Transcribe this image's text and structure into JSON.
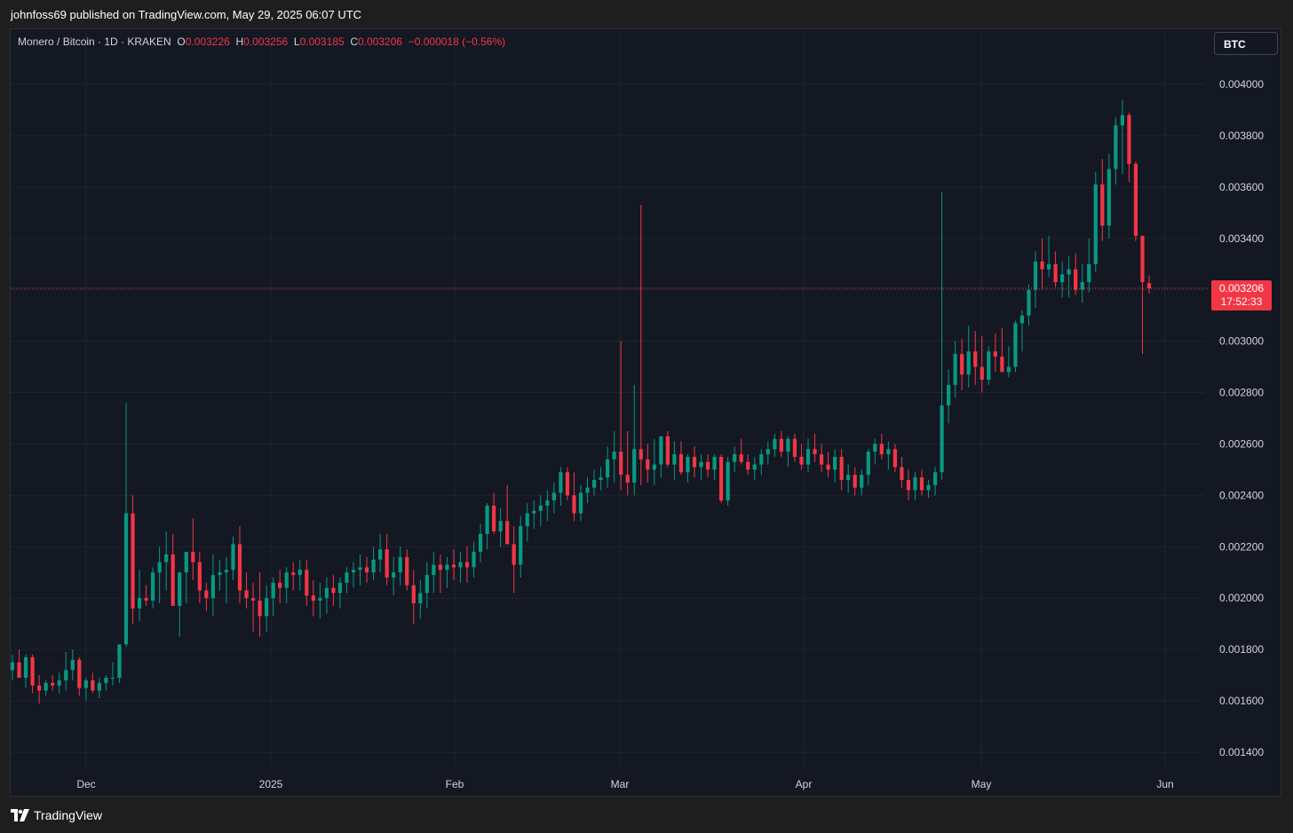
{
  "header": {
    "published_text": "johnfoss69 published on TradingView.com, May 29, 2025 06:07 UTC"
  },
  "legend": {
    "symbol": "Monero / Bitcoin · 1D · KRAKEN",
    "open_label": "O",
    "open_value": "0.003226",
    "high_label": "H",
    "high_value": "0.003256",
    "low_label": "L",
    "low_value": "0.003185",
    "close_label": "C",
    "close_value": "0.003206",
    "change": "−0.000018 (−0.56%)"
  },
  "currency_button": "BTC",
  "last_price": {
    "value": "0.003206",
    "countdown": "17:52:33"
  },
  "footer": {
    "brand": "TradingView"
  },
  "colors": {
    "up": "#089981",
    "down": "#f23645",
    "background": "#141823",
    "grid": "#1f2330"
  },
  "chart_data": {
    "type": "candlestick",
    "title": "Monero / Bitcoin · 1D · KRAKEN",
    "y_ticks": [
      "0.001400",
      "0.001600",
      "0.001800",
      "0.002000",
      "0.002200",
      "0.002400",
      "0.002600",
      "0.002800",
      "0.003000",
      "0.003200",
      "0.003400",
      "0.003600",
      "0.003800",
      "0.004000"
    ],
    "ylim": [
      0.00134,
      0.00415
    ],
    "x_labels": [
      "Dec",
      "2025",
      "Feb",
      "Mar",
      "Apr",
      "May",
      "Jun"
    ],
    "start_date": "2024-11-16",
    "anchors": [
      [
        0.00172,
        0.00178,
        0.00168,
        0.00175
      ],
      [
        0.00175,
        0.0018,
        0.0017,
        0.00169
      ],
      [
        0.00169,
        0.00178,
        0.00165,
        0.00177
      ],
      [
        0.00177,
        0.00178,
        0.00163,
        0.00166
      ],
      [
        0.00166,
        0.0017,
        0.00159,
        0.00164
      ],
      [
        0.00164,
        0.00168,
        0.00162,
        0.00167
      ],
      [
        0.00167,
        0.0017,
        0.00164,
        0.00166
      ],
      [
        0.00166,
        0.00171,
        0.00163,
        0.00168
      ],
      [
        0.00168,
        0.00179,
        0.00164,
        0.00172
      ],
      [
        0.00172,
        0.0018,
        0.00168,
        0.00176
      ],
      [
        0.00176,
        0.00177,
        0.00162,
        0.00165
      ],
      [
        0.00165,
        0.00169,
        0.0016,
        0.00168
      ],
      [
        0.00168,
        0.00171,
        0.00163,
        0.00164
      ],
      [
        0.00164,
        0.00169,
        0.00161,
        0.00167
      ],
      [
        0.00167,
        0.0017,
        0.00164,
        0.00169
      ],
      [
        0.00169,
        0.00175,
        0.00166,
        0.00169
      ],
      [
        0.00169,
        0.00178,
        0.00167,
        0.00182
      ],
      [
        0.00182,
        0.00276,
        0.00181,
        0.00233
      ],
      [
        0.00233,
        0.0024,
        0.0019,
        0.00196
      ],
      [
        0.00196,
        0.00211,
        0.00191,
        0.002
      ],
      [
        0.002,
        0.00205,
        0.00197,
        0.00199
      ],
      [
        0.00199,
        0.00212,
        0.00196,
        0.0021
      ],
      [
        0.0021,
        0.0022,
        0.00198,
        0.00214
      ],
      [
        0.00214,
        0.00226,
        0.00203,
        0.00217
      ],
      [
        0.00217,
        0.00225,
        0.00199,
        0.00197
      ],
      [
        0.00197,
        0.00206,
        0.00185,
        0.0021
      ],
      [
        0.0021,
        0.00214,
        0.00198,
        0.00218
      ],
      [
        0.00218,
        0.00231,
        0.00207,
        0.00214
      ],
      [
        0.00214,
        0.00218,
        0.00198,
        0.00203
      ],
      [
        0.00203,
        0.00206,
        0.00195,
        0.002
      ],
      [
        0.002,
        0.00217,
        0.00193,
        0.00209
      ],
      [
        0.00209,
        0.00215,
        0.00203,
        0.0021
      ],
      [
        0.0021,
        0.00216,
        0.00198,
        0.00211
      ],
      [
        0.00211,
        0.00224,
        0.00207,
        0.00221
      ],
      [
        0.00221,
        0.00228,
        0.00198,
        0.00203
      ],
      [
        0.00203,
        0.0021,
        0.00196,
        0.002
      ],
      [
        0.002,
        0.00206,
        0.00187,
        0.00199
      ],
      [
        0.00199,
        0.0021,
        0.00185,
        0.00193
      ],
      [
        0.00193,
        0.00205,
        0.00187,
        0.002
      ],
      [
        0.002,
        0.00208,
        0.00193,
        0.00206
      ],
      [
        0.00206,
        0.00211,
        0.00198,
        0.00204
      ],
      [
        0.00204,
        0.00212,
        0.00198,
        0.0021
      ],
      [
        0.0021,
        0.00214,
        0.00203,
        0.00209
      ],
      [
        0.00209,
        0.00215,
        0.00203,
        0.00211
      ],
      [
        0.00211,
        0.00215,
        0.00197,
        0.00201
      ],
      [
        0.00201,
        0.00207,
        0.00193,
        0.00199
      ],
      [
        0.00199,
        0.00206,
        0.00192,
        0.002
      ],
      [
        0.002,
        0.00208,
        0.00194,
        0.00204
      ],
      [
        0.00204,
        0.00209,
        0.00197,
        0.00202
      ],
      [
        0.00202,
        0.00208,
        0.00196,
        0.00206
      ],
      [
        0.00206,
        0.00212,
        0.00202,
        0.0021
      ],
      [
        0.0021,
        0.00214,
        0.00204,
        0.00211
      ],
      [
        0.00211,
        0.00217,
        0.00205,
        0.00212
      ],
      [
        0.00212,
        0.00216,
        0.00206,
        0.0021
      ],
      [
        0.0021,
        0.0022,
        0.00207,
        0.00215
      ],
      [
        0.00215,
        0.00225,
        0.0021,
        0.00219
      ],
      [
        0.00219,
        0.00225,
        0.00205,
        0.00208
      ],
      [
        0.00208,
        0.00216,
        0.00201,
        0.0021
      ],
      [
        0.0021,
        0.0022,
        0.00205,
        0.00216
      ],
      [
        0.00216,
        0.00219,
        0.00203,
        0.00205
      ],
      [
        0.00205,
        0.00211,
        0.0019,
        0.00198
      ],
      [
        0.00198,
        0.00207,
        0.00192,
        0.00202
      ],
      [
        0.00202,
        0.00214,
        0.00196,
        0.00209
      ],
      [
        0.00209,
        0.00218,
        0.00202,
        0.00213
      ],
      [
        0.00213,
        0.00217,
        0.00202,
        0.00211
      ],
      [
        0.00211,
        0.00216,
        0.00204,
        0.00213
      ],
      [
        0.00213,
        0.00219,
        0.00207,
        0.00212
      ],
      [
        0.00212,
        0.00218,
        0.00206,
        0.00214
      ],
      [
        0.00214,
        0.0022,
        0.00206,
        0.00212
      ],
      [
        0.00212,
        0.00222,
        0.00208,
        0.00218
      ],
      [
        0.00218,
        0.00229,
        0.00214,
        0.00225
      ],
      [
        0.00225,
        0.00237,
        0.00219,
        0.00236
      ],
      [
        0.00236,
        0.00241,
        0.00225,
        0.00226
      ],
      [
        0.00226,
        0.00235,
        0.0022,
        0.0023
      ],
      [
        0.0023,
        0.00244,
        0.00222,
        0.00221
      ],
      [
        0.00221,
        0.00228,
        0.00202,
        0.00213
      ],
      [
        0.00213,
        0.00232,
        0.00208,
        0.00228
      ],
      [
        0.00228,
        0.00237,
        0.00222,
        0.00233
      ],
      [
        0.00233,
        0.00238,
        0.00227,
        0.00234
      ],
      [
        0.00234,
        0.0024,
        0.00228,
        0.00236
      ],
      [
        0.00236,
        0.00242,
        0.0023,
        0.00238
      ],
      [
        0.00238,
        0.00245,
        0.00233,
        0.00241
      ],
      [
        0.00241,
        0.00251,
        0.00236,
        0.00249
      ],
      [
        0.00249,
        0.00251,
        0.00238,
        0.0024
      ],
      [
        0.0024,
        0.00249,
        0.0023,
        0.00233
      ],
      [
        0.00233,
        0.00244,
        0.0023,
        0.00241
      ],
      [
        0.00241,
        0.00247,
        0.00237,
        0.00243
      ],
      [
        0.00243,
        0.0025,
        0.0024,
        0.00246
      ],
      [
        0.00246,
        0.00251,
        0.00242,
        0.00247
      ],
      [
        0.00247,
        0.00259,
        0.00243,
        0.00254
      ],
      [
        0.00254,
        0.00265,
        0.00245,
        0.00257
      ],
      [
        0.00257,
        0.003,
        0.00242,
        0.00248
      ],
      [
        0.00248,
        0.00265,
        0.0024,
        0.00245
      ],
      [
        0.00245,
        0.00283,
        0.0024,
        0.00258
      ],
      [
        0.00258,
        0.00353,
        0.00244,
        0.00254
      ],
      [
        0.00254,
        0.0026,
        0.00245,
        0.0025
      ],
      [
        0.0025,
        0.00262,
        0.00244,
        0.00252
      ],
      [
        0.00252,
        0.00263,
        0.00247,
        0.00263
      ],
      [
        0.00263,
        0.00265,
        0.00251,
        0.00252
      ],
      [
        0.00252,
        0.00261,
        0.00246,
        0.00256
      ],
      [
        0.00256,
        0.00261,
        0.00248,
        0.00249
      ],
      [
        0.00249,
        0.00256,
        0.00245,
        0.00255
      ],
      [
        0.00255,
        0.00259,
        0.00247,
        0.00251
      ],
      [
        0.00251,
        0.00256,
        0.00246,
        0.00253
      ],
      [
        0.00253,
        0.00256,
        0.00247,
        0.0025
      ],
      [
        0.0025,
        0.00256,
        0.00246,
        0.00255
      ],
      [
        0.00255,
        0.00256,
        0.00237,
        0.00238
      ],
      [
        0.00238,
        0.00255,
        0.00236,
        0.00253
      ],
      [
        0.00253,
        0.00259,
        0.00249,
        0.00256
      ],
      [
        0.00256,
        0.00262,
        0.00252,
        0.00253
      ],
      [
        0.00253,
        0.00256,
        0.00248,
        0.0025
      ],
      [
        0.0025,
        0.00255,
        0.00246,
        0.00252
      ],
      [
        0.00252,
        0.00258,
        0.00248,
        0.00256
      ],
      [
        0.00256,
        0.00261,
        0.00252,
        0.00258
      ],
      [
        0.00258,
        0.00264,
        0.00255,
        0.00262
      ],
      [
        0.00262,
        0.00265,
        0.00255,
        0.00257
      ],
      [
        0.00257,
        0.00263,
        0.00251,
        0.00262
      ],
      [
        0.00262,
        0.00264,
        0.00253,
        0.00255
      ],
      [
        0.00255,
        0.0026,
        0.0025,
        0.00252
      ],
      [
        0.00252,
        0.00262,
        0.00249,
        0.00258
      ],
      [
        0.00258,
        0.00264,
        0.00253,
        0.00256
      ],
      [
        0.00256,
        0.0026,
        0.00249,
        0.00252
      ],
      [
        0.00252,
        0.00257,
        0.00247,
        0.0025
      ],
      [
        0.0025,
        0.00258,
        0.00245,
        0.00255
      ],
      [
        0.00255,
        0.00258,
        0.00242,
        0.00246
      ],
      [
        0.00246,
        0.00252,
        0.00241,
        0.00248
      ],
      [
        0.00248,
        0.00251,
        0.0024,
        0.00243
      ],
      [
        0.00243,
        0.0025,
        0.0024,
        0.00248
      ],
      [
        0.00248,
        0.00258,
        0.00244,
        0.00257
      ],
      [
        0.00257,
        0.00262,
        0.00252,
        0.0026
      ],
      [
        0.0026,
        0.00264,
        0.00254,
        0.00256
      ],
      [
        0.00256,
        0.00261,
        0.0025,
        0.00258
      ],
      [
        0.00258,
        0.0026,
        0.00249,
        0.00251
      ],
      [
        0.00251,
        0.00255,
        0.00243,
        0.00246
      ],
      [
        0.00246,
        0.0025,
        0.00238,
        0.00242
      ],
      [
        0.00242,
        0.00249,
        0.00238,
        0.00247
      ],
      [
        0.00247,
        0.0025,
        0.0024,
        0.00242
      ],
      [
        0.00242,
        0.00246,
        0.00239,
        0.00244
      ],
      [
        0.00244,
        0.00251,
        0.0024,
        0.00249
      ],
      [
        0.00249,
        0.00358,
        0.00246,
        0.00275
      ],
      [
        0.00275,
        0.00289,
        0.00268,
        0.00283
      ],
      [
        0.00283,
        0.003,
        0.00278,
        0.00295
      ],
      [
        0.00295,
        0.00301,
        0.00281,
        0.00287
      ],
      [
        0.00287,
        0.00306,
        0.00282,
        0.00296
      ],
      [
        0.00296,
        0.00304,
        0.00283,
        0.0029
      ],
      [
        0.0029,
        0.00302,
        0.0028,
        0.00285
      ],
      [
        0.00285,
        0.00298,
        0.00283,
        0.00296
      ],
      [
        0.00296,
        0.00303,
        0.00288,
        0.00294
      ],
      [
        0.00294,
        0.00305,
        0.00289,
        0.00288
      ],
      [
        0.00288,
        0.00298,
        0.00286,
        0.0029
      ],
      [
        0.0029,
        0.00308,
        0.00288,
        0.00307
      ],
      [
        0.00307,
        0.00312,
        0.00296,
        0.0031
      ],
      [
        0.0031,
        0.00322,
        0.00306,
        0.0032
      ],
      [
        0.0032,
        0.00335,
        0.00313,
        0.00331
      ],
      [
        0.00331,
        0.0034,
        0.0032,
        0.00328
      ],
      [
        0.00328,
        0.00341,
        0.00325,
        0.0033
      ],
      [
        0.0033,
        0.00335,
        0.00321,
        0.00323
      ],
      [
        0.00323,
        0.00331,
        0.00317,
        0.00326
      ],
      [
        0.00326,
        0.00333,
        0.00317,
        0.00328
      ],
      [
        0.00328,
        0.00334,
        0.00318,
        0.0032
      ],
      [
        0.0032,
        0.0033,
        0.00315,
        0.00323
      ],
      [
        0.00323,
        0.0034,
        0.00319,
        0.0033
      ],
      [
        0.0033,
        0.00366,
        0.00327,
        0.00361
      ],
      [
        0.00361,
        0.00371,
        0.00339,
        0.00345
      ],
      [
        0.00345,
        0.00373,
        0.0034,
        0.00367
      ],
      [
        0.00367,
        0.00387,
        0.00361,
        0.00384
      ],
      [
        0.00384,
        0.00394,
        0.00365,
        0.00388
      ],
      [
        0.00388,
        0.00389,
        0.00362,
        0.00369
      ],
      [
        0.00369,
        0.0037,
        0.00339,
        0.00341
      ],
      [
        0.00341,
        0.00341,
        0.00295,
        0.00323
      ],
      [
        0.003226,
        0.003256,
        0.003185,
        0.003206
      ]
    ]
  }
}
